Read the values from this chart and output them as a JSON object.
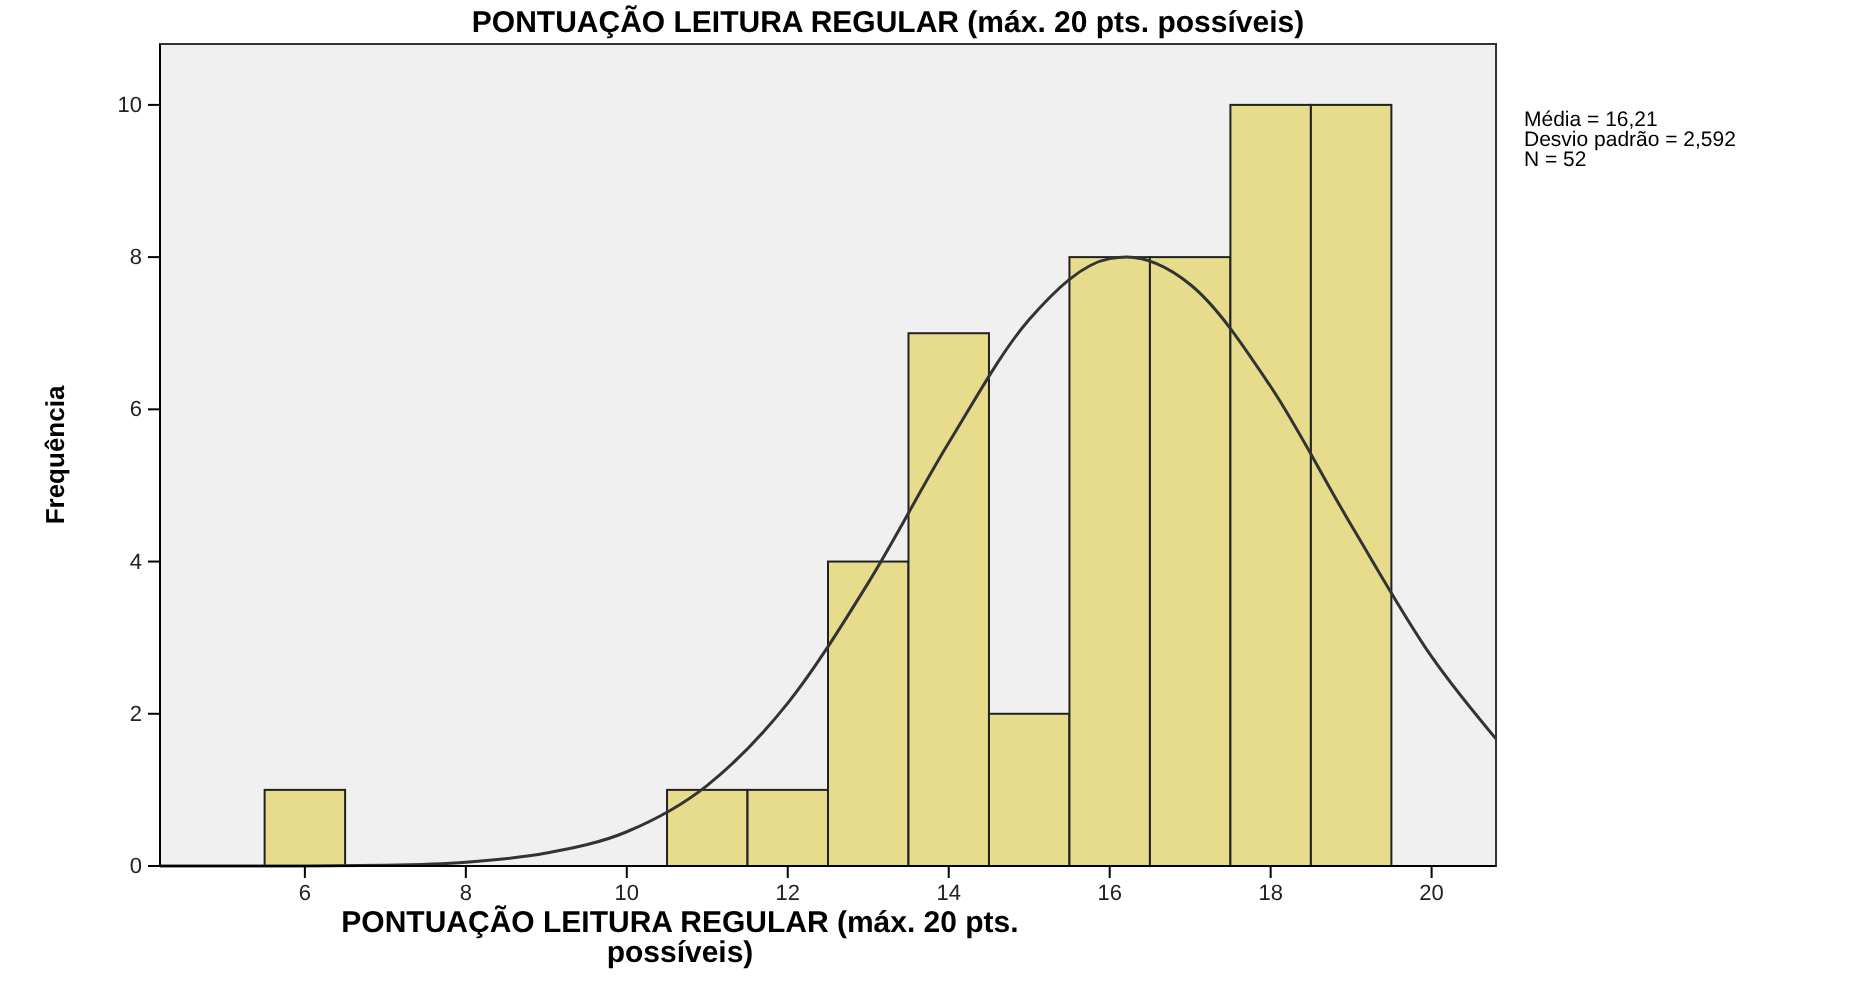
{
  "chart_data": {
    "type": "histogram",
    "title": "PONTUAÇÃO LEITURA REGULAR (máx. 20 pts. possíveis)",
    "xlabel": "PONTUAÇÃO LEITURA REGULAR (máx. 20 pts. possíveis)",
    "ylabel": "Frequência",
    "bins": [
      5.5,
      6.5,
      7.5,
      8.5,
      9.5,
      10.5,
      11.5,
      12.5,
      13.5,
      14.5,
      15.5,
      16.5,
      17.5,
      18.5,
      19.5
    ],
    "values": [
      1,
      0,
      0,
      0,
      0,
      1,
      1,
      4,
      7,
      2,
      8,
      8,
      10,
      10
    ],
    "color": "#e6dc8c",
    "series": [
      {
        "type": "line",
        "color": "#333333",
        "x": [
          4.2,
          6,
          7,
          8,
          9,
          10,
          11,
          12,
          13,
          14,
          15,
          16,
          16.21,
          17,
          18,
          19,
          20,
          20.8
        ],
        "values": [
          0,
          0,
          0.01,
          0.05,
          0.17,
          0.45,
          1.06,
          2.14,
          3.72,
          5.56,
          7.18,
          7.98,
          8,
          7.64,
          6.3,
          4.48,
          2.75,
          1.67
        ]
      }
    ],
    "xlim": [
      4.2,
      20.8
    ],
    "xticks": [
      6,
      8,
      10,
      12,
      14,
      16,
      18,
      20
    ],
    "ylim": [
      0,
      10.8
    ],
    "yticks": [
      0,
      2,
      4,
      6,
      8,
      10
    ],
    "grid": false,
    "annotations": [
      "Média = 16,21",
      "Desvio padrão = 2,592",
      "N = 52"
    ]
  }
}
